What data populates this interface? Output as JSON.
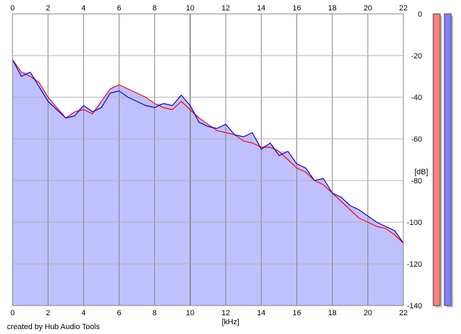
{
  "chart_data": {
    "type": "line",
    "title": "",
    "xlabel": "[kHz]",
    "ylabel": "[dB]",
    "xlim": [
      0,
      22
    ],
    "ylim": [
      -140,
      0
    ],
    "x_ticks": [
      "0",
      "2",
      "4",
      "6",
      "8",
      "10",
      "12",
      "14",
      "16",
      "18",
      "20",
      "22"
    ],
    "y_ticks": [
      "0",
      "-20",
      "-40",
      "-60",
      "-80",
      "-100",
      "-120",
      "-140"
    ],
    "grid": true,
    "x": [
      0.0,
      0.5,
      1.0,
      1.5,
      2.0,
      2.5,
      3.0,
      3.5,
      4.0,
      4.5,
      5.0,
      5.5,
      6.0,
      6.5,
      7.0,
      7.5,
      8.0,
      8.5,
      9.0,
      9.5,
      10.0,
      10.5,
      11.0,
      11.5,
      12.0,
      12.5,
      13.0,
      13.5,
      14.0,
      14.5,
      15.0,
      15.5,
      16.0,
      16.5,
      17.0,
      17.5,
      18.0,
      18.5,
      19.0,
      19.5,
      20.0,
      20.5,
      21.0,
      21.5,
      22.0
    ],
    "series": [
      {
        "name": "",
        "color": "#ff0000",
        "values": [
          -22,
          -28,
          -30,
          -33,
          -40,
          -45,
          -50,
          -47,
          -46,
          -48,
          -42,
          -36,
          -34,
          -36,
          -38,
          -40,
          -43,
          -45,
          -46,
          -42,
          -46,
          -50,
          -53,
          -56,
          -57,
          -58,
          -61,
          -62,
          -64,
          -64,
          -66,
          -70,
          -74,
          -76,
          -80,
          -82,
          -86,
          -90,
          -94,
          -98,
          -100,
          -102,
          -103,
          -106,
          -110
        ]
      },
      {
        "name": "",
        "color": "#0000c8",
        "values": [
          -22,
          -30,
          -28,
          -35,
          -42,
          -46,
          -50,
          -49,
          -44,
          -47,
          -45,
          -38,
          -37,
          -40,
          -42,
          -44,
          -45,
          -43,
          -44,
          -39,
          -44,
          -52,
          -54,
          -55,
          -53,
          -58,
          -59,
          -57,
          -65,
          -62,
          -68,
          -66,
          -72,
          -74,
          -80,
          -79,
          -86,
          -88,
          -92,
          -94,
          -97,
          -100,
          -102,
          -104,
          -110
        ]
      }
    ],
    "fill_color": "#c0c0ff",
    "level_meters": [
      {
        "color": "#ff8080",
        "level": 1.0
      },
      {
        "color": "#8080ff",
        "level": 1.0
      }
    ]
  },
  "footer": {
    "credit": "created by Hub Audio Tools"
  }
}
